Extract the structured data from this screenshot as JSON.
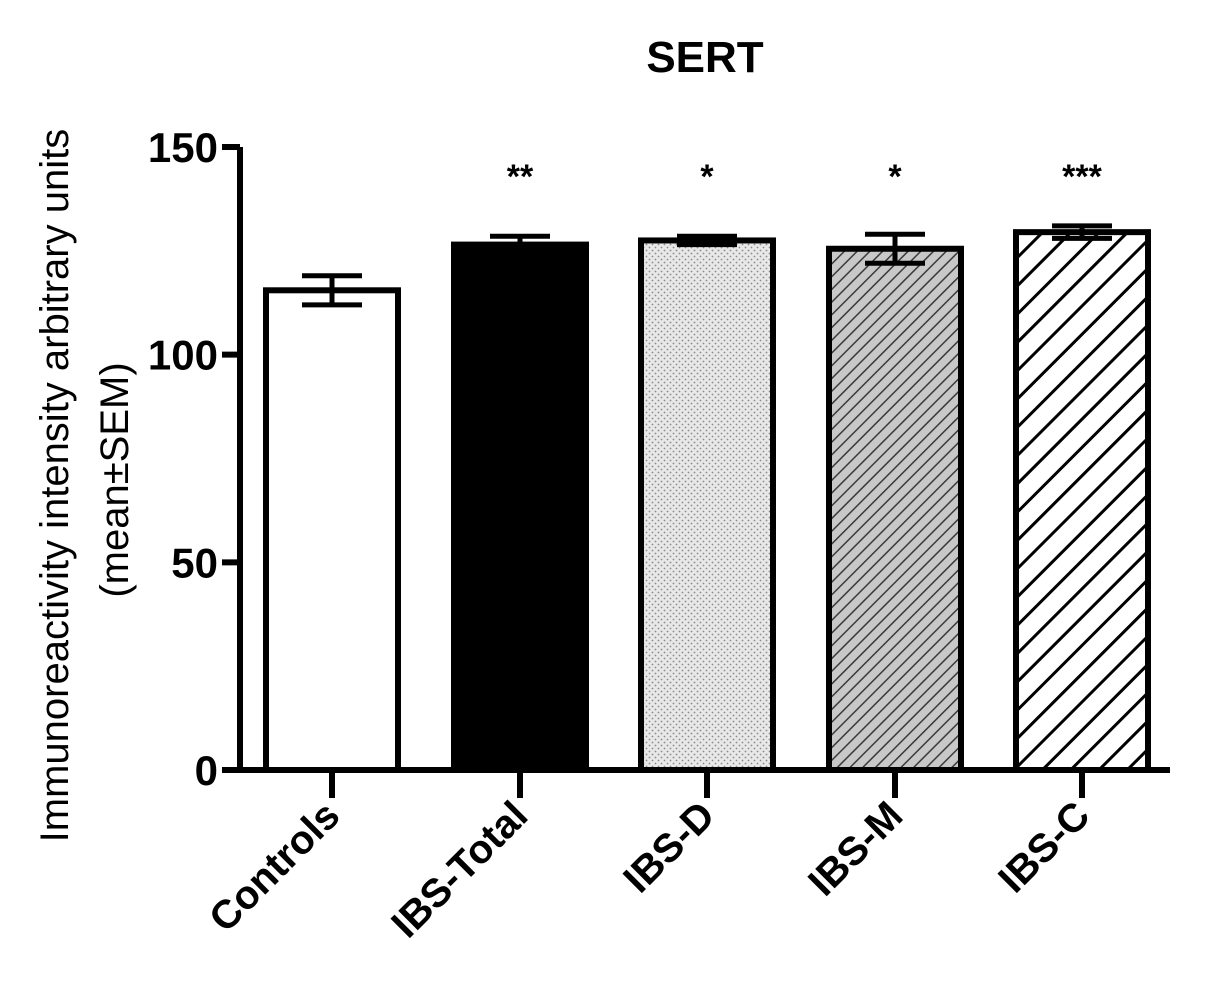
{
  "chart_data": {
    "type": "bar",
    "title": "SERT",
    "ylabel_lines": [
      "Immunoreactivity intensity arbitrary units",
      "(mean±SEM)"
    ],
    "xlabel": "",
    "ylim": [
      0,
      150
    ],
    "yticks": [
      0,
      50,
      100,
      150
    ],
    "ytick_labels": [
      "0",
      "50",
      "100",
      "150"
    ],
    "categories": [
      "Controls",
      "IBS-Total",
      "IBS-D",
      "IBS-M",
      "IBS-C"
    ],
    "values": [
      115.5,
      126.5,
      127.5,
      125.5,
      129.5
    ],
    "errors": [
      3.5,
      2.0,
      1.0,
      3.5,
      1.5
    ],
    "significance": [
      "",
      "**",
      "*",
      "*",
      "***"
    ],
    "fills": [
      "white",
      "black",
      "dots",
      "dense-hatch",
      "wide-hatch"
    ],
    "grid": false,
    "legend": "none",
    "colors": {
      "axis": "#000000",
      "bar_edge": "#000000",
      "background": "#ffffff"
    }
  }
}
